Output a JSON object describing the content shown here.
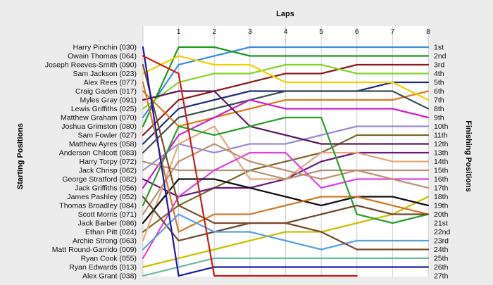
{
  "chart_data": {
    "type": "line",
    "title": "Laps",
    "xlabel": "Laps",
    "ylabel_left": "Starting Positions",
    "ylabel_right": "Finishing Positions",
    "laps": [
      0,
      1,
      2,
      3,
      4,
      5,
      6,
      7,
      8
    ],
    "lap_tick_labels": [
      "1",
      "2",
      "3",
      "4",
      "5",
      "6",
      "7",
      "8"
    ],
    "starting_labels": [
      "Harry Pinchin (030)",
      "Owain Thomas (064)",
      "Joseph Reeves-Smith (090)",
      "Sam Jackson (023)",
      "Alex Rees (077)",
      "Craig Gaden (017)",
      "Myles Gray (091)",
      "Lewis Griffiths (025)",
      "Matthew Graham (070)",
      "Joshua Grimston (080)",
      "Sam Fowler (027)",
      "Matthew Ayres (058)",
      "Anderson Chilcott (083)",
      "Harry Torpy (072)",
      "Jack Chrisp (062)",
      "George Stratford (082)",
      "Jack Griffiths (056)",
      "James Pashley (052)",
      "Thomas Broadley (084)",
      "Scott Morris (071)",
      "Jack Barber (086)",
      "Ethan Pitt (024)",
      "Archie Strong (063)",
      "Matt Round-Garrido (009)",
      "Ryan Cook (055)",
      "Ryan Edwards (013)",
      "Alex Grant (038)"
    ],
    "finishing_labels": [
      "1st",
      "2nd",
      "3rd",
      "4th",
      "5th",
      "6th",
      "7th",
      "8th",
      "9th",
      "10th",
      "11th",
      "12th",
      "13th",
      "14th",
      "15th",
      "16th",
      "17th",
      "18th",
      "19th",
      "20th",
      "21st",
      "22nd",
      "23rd",
      "24th",
      "25th",
      "26th",
      "27th"
    ],
    "ylim": [
      1,
      27
    ],
    "series": [
      {
        "color": "#3b8ee0",
        "positions": [
          9,
          3,
          2,
          1,
          1,
          1,
          1,
          1,
          1
        ]
      },
      {
        "color": "#1e9b1e",
        "positions": [
          10,
          1,
          1,
          2,
          2,
          2,
          2,
          2,
          2
        ]
      },
      {
        "color": "#8b1a1a",
        "positions": [
          11,
          7,
          6,
          5,
          4,
          4,
          3,
          3,
          3
        ]
      },
      {
        "color": "#84d42a",
        "positions": [
          8,
          5,
          4,
          4,
          3,
          3,
          4,
          4,
          4
        ]
      },
      {
        "color": "#1c2f78",
        "positions": [
          12,
          8,
          7,
          6,
          6,
          6,
          6,
          5,
          5
        ]
      },
      {
        "color": "#e07b1c",
        "positions": [
          6,
          10,
          9,
          8,
          7,
          7,
          7,
          7,
          6
        ]
      },
      {
        "color": "#f0d000",
        "positions": [
          4,
          2,
          3,
          3,
          5,
          5,
          5,
          5,
          7
        ]
      },
      {
        "color": "#3d4f4f",
        "positions": [
          13,
          9,
          8,
          7,
          6,
          6,
          6,
          6,
          8
        ]
      },
      {
        "color": "#cc20cc",
        "positions": [
          17,
          11,
          9,
          7,
          8,
          8,
          8,
          8,
          9
        ]
      },
      {
        "color": "#9b8bd6",
        "positions": [
          15,
          12,
          13,
          12,
          12,
          11,
          10,
          10,
          10
        ]
      },
      {
        "color": "#7a6a28",
        "positions": [
          22,
          19,
          17,
          15,
          14,
          13,
          11,
          11,
          11
        ]
      },
      {
        "color": "#5a1a5a",
        "positions": [
          7,
          6,
          6,
          10,
          11,
          12,
          12,
          12,
          12
        ]
      },
      {
        "color": "#6a1a7a",
        "positions": [
          16,
          18,
          17,
          17,
          16,
          14,
          13,
          13,
          13
        ]
      },
      {
        "color": "#e3aa7e",
        "positions": [
          23,
          12,
          10,
          16,
          16,
          13,
          13,
          14,
          14
        ]
      },
      {
        "color": "#b6917a",
        "positions": [
          14,
          15,
          15,
          15,
          16,
          15,
          15,
          15,
          15
        ]
      },
      {
        "color": "#e040e0",
        "positions": [
          25,
          18,
          15,
          13,
          13,
          17,
          16,
          16,
          16
        ]
      },
      {
        "color": "#c09070",
        "positions": [
          20,
          14,
          12,
          14,
          15,
          16,
          15,
          16,
          17
        ]
      },
      {
        "color": "#c9c000",
        "positions": [
          26,
          25,
          24,
          23,
          22,
          22,
          21,
          20,
          18
        ]
      },
      {
        "color": "#101010",
        "positions": [
          21,
          16,
          16,
          17,
          18,
          19,
          18,
          18,
          19
        ]
      },
      {
        "color": "#d07a2a",
        "positions": [
          5,
          22,
          20,
          20,
          19,
          18,
          18,
          19,
          20
        ]
      },
      {
        "color": "#2aa02a",
        "positions": [
          19,
          10,
          11,
          10,
          9,
          9,
          20,
          21,
          20
        ]
      },
      {
        "color": "#6e4a2e",
        "positions": [
          18,
          23,
          22,
          21,
          21,
          20,
          19,
          20,
          20
        ]
      },
      {
        "color": "#5aa0e0",
        "positions": [
          24,
          20,
          22,
          22,
          23,
          24,
          23,
          23,
          23
        ]
      },
      {
        "color": "#7a4a2a",
        "positions": [
          3,
          19,
          21,
          21,
          21,
          22,
          24,
          24,
          24
        ]
      },
      {
        "color": "#6dbba0",
        "positions": [
          27,
          26,
          25,
          25,
          25,
          25,
          25,
          25,
          25
        ]
      },
      {
        "color": "#1a1aa8",
        "positions": [
          1,
          27,
          26,
          26,
          26,
          26,
          26,
          26,
          26
        ]
      },
      {
        "color": "#d01a1a",
        "positions": [
          2,
          4,
          27,
          27,
          27,
          27,
          27
        ]
      }
    ]
  }
}
